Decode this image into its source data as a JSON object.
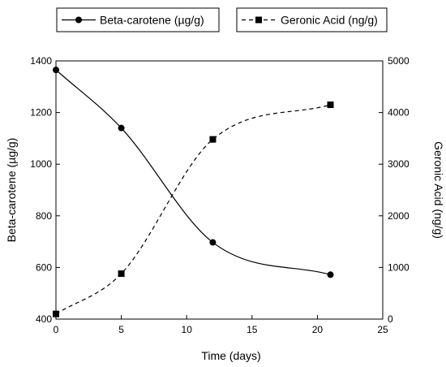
{
  "chart_data": {
    "type": "line",
    "x": [
      0,
      5,
      12,
      21
    ],
    "xlabel": "Time (days)",
    "xlim": [
      0,
      25
    ],
    "xticks": [
      "0",
      "5",
      "10",
      "15",
      "20",
      "25"
    ],
    "ylabel_left": "Beta-carotene (µg/g)",
    "ylim_left": [
      400,
      1400
    ],
    "yticks_left": [
      "400",
      "600",
      "800",
      "1000",
      "1200",
      "1400"
    ],
    "ylabel_right": "Geronic Acid (ng/g)",
    "ylim_right": [
      0,
      5000
    ],
    "yticks_right": [
      "0",
      "1000",
      "2000",
      "3000",
      "4000",
      "5000"
    ],
    "grid": false,
    "legend_placement": "top, outside plot area",
    "series": [
      {
        "name": "Beta-carotene (µg/g)",
        "axis": "left",
        "values": [
          1365,
          1140,
          697,
          572
        ],
        "line_style": "solid",
        "marker": "circle",
        "color": "#000000"
      },
      {
        "name": "Geronic Acid (ng/g)",
        "axis": "right",
        "values": [
          100,
          880,
          3480,
          4150
        ],
        "line_style": "dashed",
        "marker": "square",
        "color": "#000000"
      }
    ]
  }
}
